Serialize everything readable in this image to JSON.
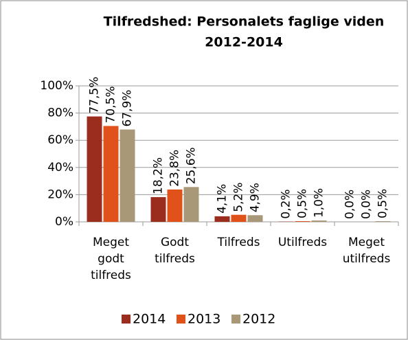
{
  "chart_data": {
    "type": "bar",
    "title": [
      "Tilfredshed: Personalets faglige viden",
      "2012-2014"
    ],
    "categories": [
      "Meget godt tilfreds",
      "Godt tilfreds",
      "Tilfreds",
      "Utilfreds",
      "Meget utilfreds"
    ],
    "series": [
      {
        "name": "2014",
        "color": "#9b2d1f",
        "values": [
          77.5,
          18.2,
          4.1,
          0.2,
          0.0
        ],
        "value_labels": [
          "77,5%",
          "18,2%",
          "4,1%",
          "0,2%",
          "0,0%"
        ]
      },
      {
        "name": "2013",
        "color": "#e0521a",
        "values": [
          70.5,
          23.8,
          5.2,
          0.5,
          0.0
        ],
        "value_labels": [
          "70,5%",
          "23,8%",
          "5,2%",
          "0,5%",
          "0,0%"
        ]
      },
      {
        "name": "2012",
        "color": "#a89878",
        "values": [
          67.9,
          25.6,
          4.9,
          1.0,
          0.5
        ],
        "value_labels": [
          "67,9%",
          "25,6%",
          "4,9%",
          "1,0%",
          "0,5%"
        ]
      }
    ],
    "ylim": [
      0,
      100
    ],
    "yticks": [
      {
        "value": 0,
        "label": "0%"
      },
      {
        "value": 20,
        "label": "20%"
      },
      {
        "value": 40,
        "label": "40%"
      },
      {
        "value": 60,
        "label": "60%"
      },
      {
        "value": 80,
        "label": "80%"
      },
      {
        "value": 100,
        "label": "100%"
      }
    ],
    "grid": true,
    "legend": "bottom"
  }
}
